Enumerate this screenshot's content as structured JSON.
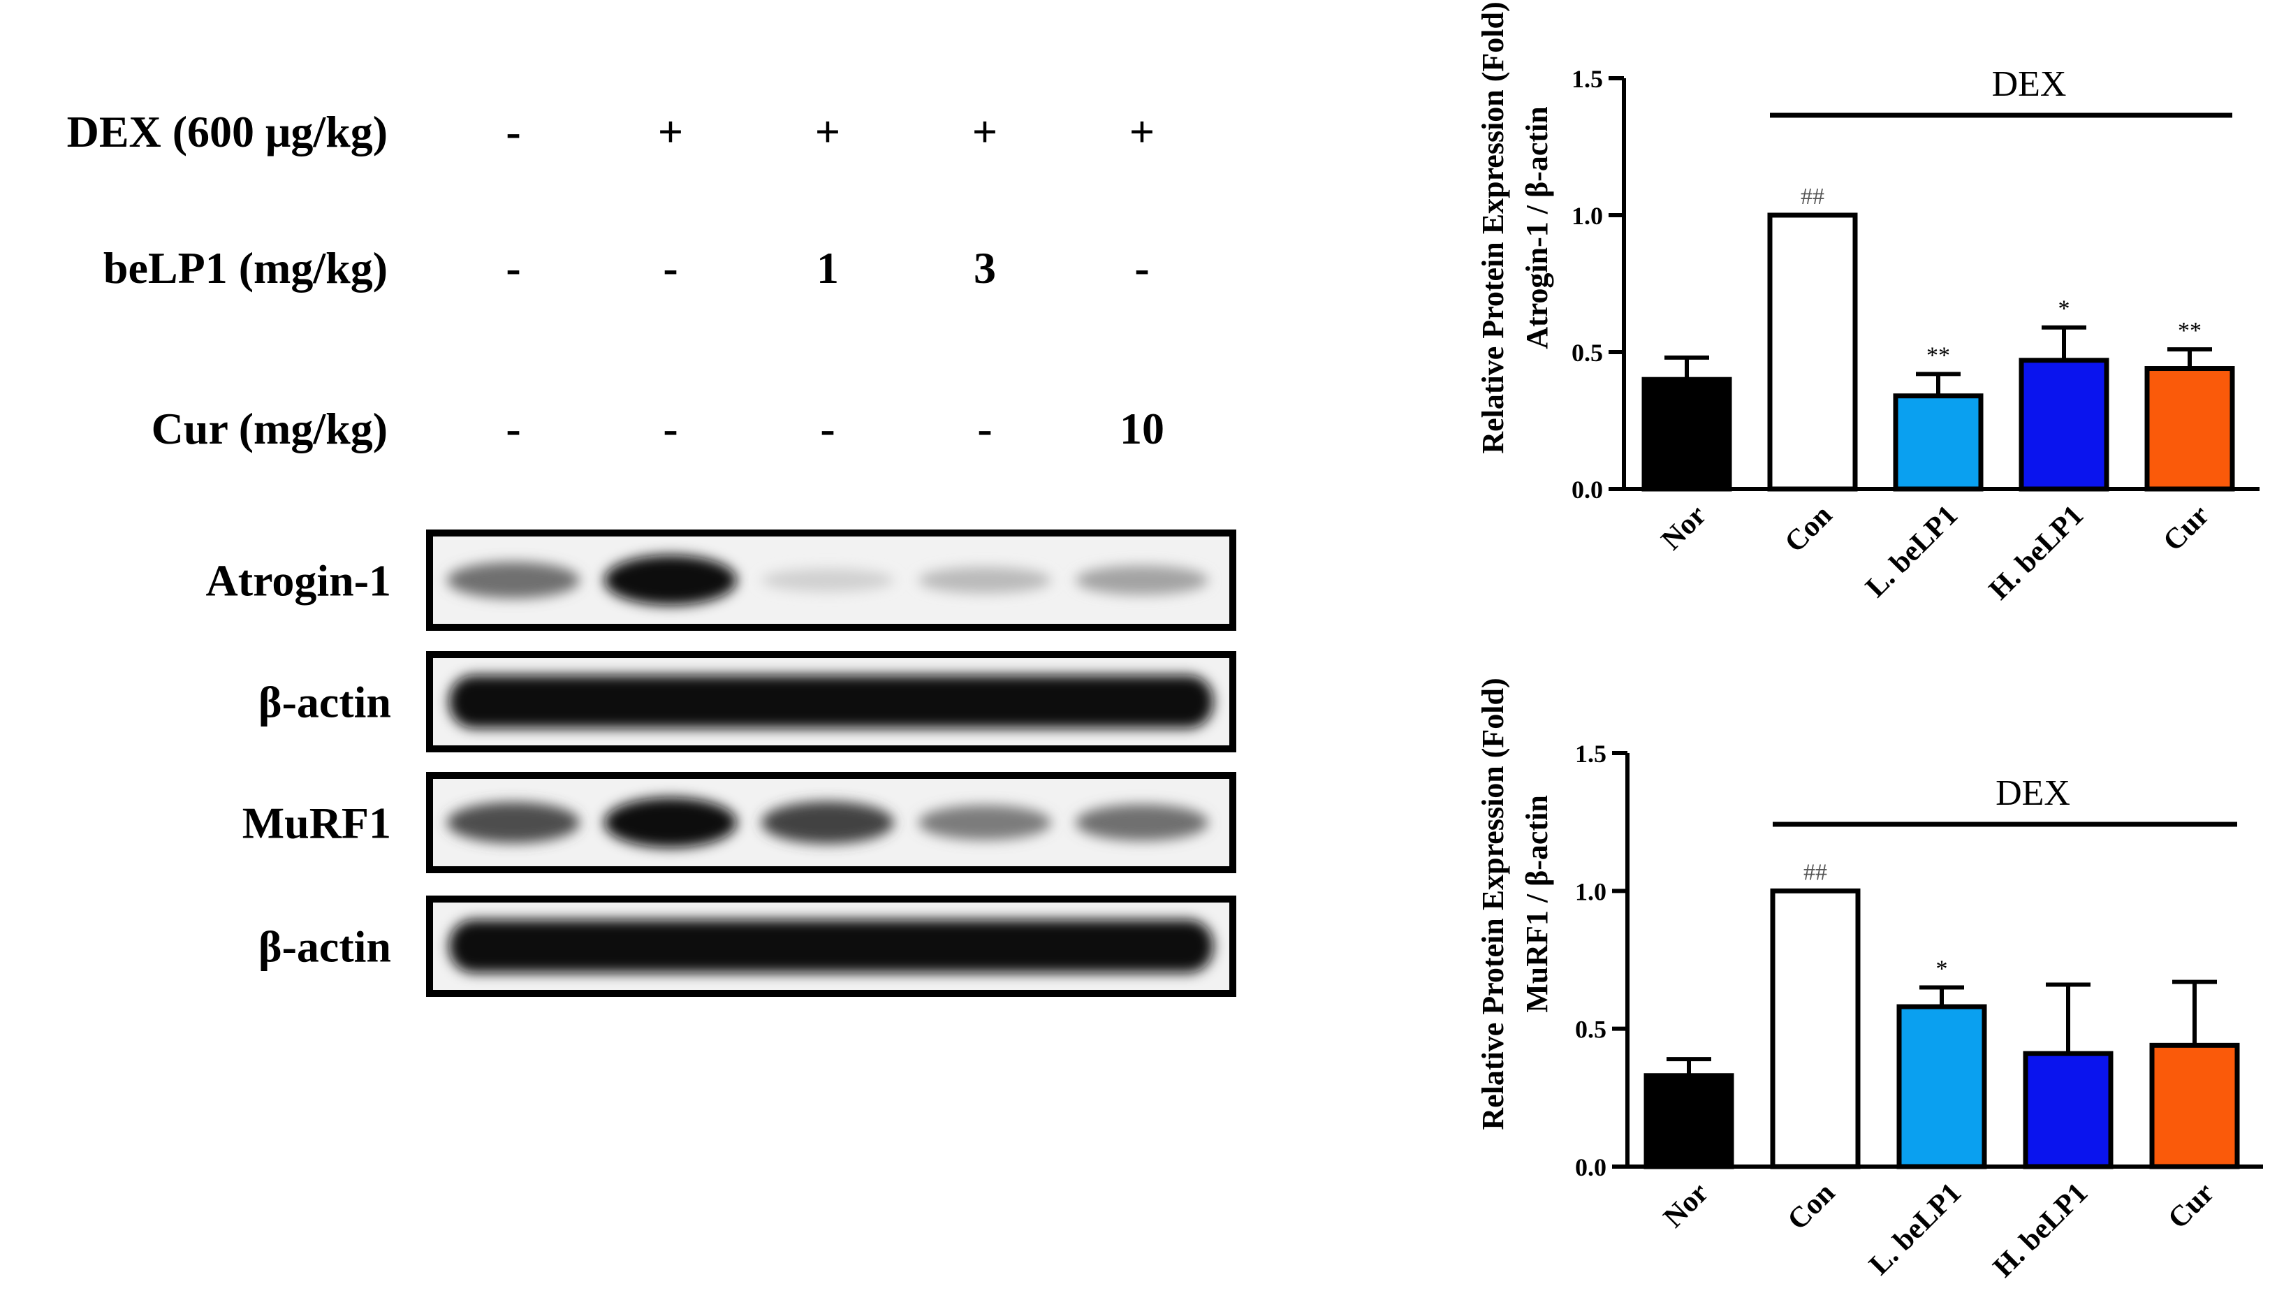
{
  "treatment_table": {
    "rows": [
      {
        "label": "DEX (600 μg/kg)",
        "values": [
          "-",
          "+",
          "+",
          "+",
          "+"
        ]
      },
      {
        "label": "beLP1 (mg/kg)",
        "values": [
          "-",
          "-",
          "1",
          "3",
          "-"
        ]
      },
      {
        "label": "Cur (mg/kg)",
        "values": [
          "-",
          "-",
          "-",
          "-",
          "10"
        ]
      }
    ]
  },
  "blots": [
    {
      "label": "Atrogin-1",
      "intensities": [
        0.55,
        1.0,
        0.12,
        0.22,
        0.32
      ],
      "style": "thin"
    },
    {
      "label": "β-actin",
      "intensities": [
        1.0,
        1.0,
        1.0,
        1.0,
        1.0
      ],
      "style": "thick"
    },
    {
      "label": "MuRF1",
      "intensities": [
        0.7,
        1.0,
        0.75,
        0.5,
        0.55
      ],
      "style": "thin"
    },
    {
      "label": "β-actin",
      "intensities": [
        1.0,
        1.0,
        1.0,
        1.0,
        1.0
      ],
      "style": "thick"
    }
  ],
  "chart_data": [
    {
      "type": "bar",
      "categories": [
        "Nor",
        "Con",
        "L. beLP1",
        "H. beLP1",
        "Cur"
      ],
      "values": [
        0.4,
        1.0,
        0.34,
        0.47,
        0.44
      ],
      "errors": [
        0.08,
        0.0,
        0.08,
        0.12,
        0.07
      ],
      "significance": [
        "",
        "##",
        "**",
        "*",
        "**"
      ],
      "colors": [
        "#000000",
        "#ffffff",
        "#0aa0f0",
        "#0a14ee",
        "#fa5a0a"
      ],
      "ylabel_line1": "Relative Protein Expression (Fold)",
      "ylabel_line2": "Atrogin-1 / β-actin",
      "ylim": [
        0,
        1.5
      ],
      "yticks": [
        "0.0",
        "0.5",
        "1.0",
        "1.5"
      ],
      "group_label": "DEX",
      "group_span": [
        1,
        4
      ]
    },
    {
      "type": "bar",
      "categories": [
        "Nor",
        "Con",
        "L. beLP1",
        "H. beLP1",
        "Cur"
      ],
      "values": [
        0.33,
        1.0,
        0.58,
        0.41,
        0.44
      ],
      "errors": [
        0.06,
        0.0,
        0.07,
        0.25,
        0.23
      ],
      "significance": [
        "",
        "##",
        "*",
        "",
        ""
      ],
      "colors": [
        "#000000",
        "#ffffff",
        "#0aa0f0",
        "#0a14ee",
        "#fa5a0a"
      ],
      "ylabel_line1": "Relative Protein Expression (Fold)",
      "ylabel_line2": "MuRF1 / β-actin",
      "ylim": [
        0,
        1.5
      ],
      "yticks": [
        "0.0",
        "0.5",
        "1.0",
        "1.5"
      ],
      "group_label": "DEX",
      "group_span": [
        1,
        4
      ]
    }
  ]
}
